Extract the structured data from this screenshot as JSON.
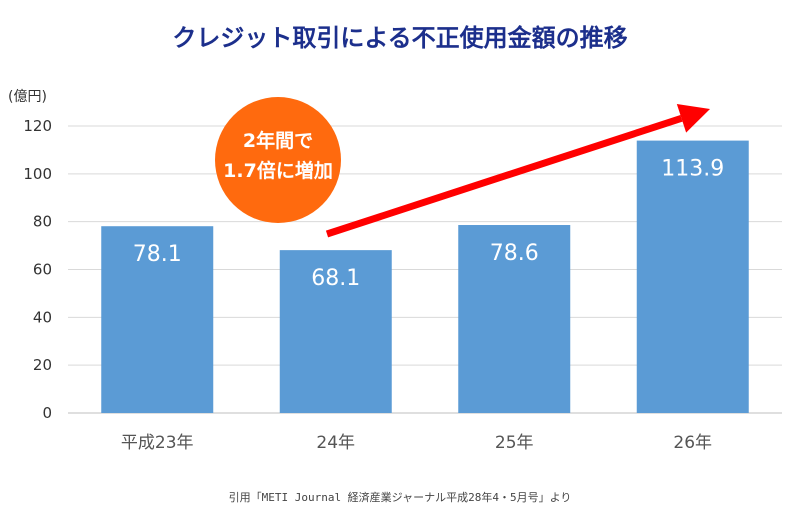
{
  "chart_data": {
    "type": "bar",
    "title": "クレジット取引による不正使用金額の推移",
    "ylabel": "(億円)",
    "xlabel": "",
    "categories": [
      "平成23年",
      "24年",
      "25年",
      "26年"
    ],
    "values": [
      78.1,
      68.1,
      78.6,
      113.9
    ],
    "value_labels": [
      "78.1",
      "68.1",
      "78.6",
      "113.9"
    ],
    "ylim": [
      0,
      120
    ],
    "yticks": [
      0,
      20,
      40,
      60,
      80,
      100,
      120
    ],
    "grid": true,
    "bar_color": "#5b9bd5",
    "annotation": {
      "lines": [
        "2年間で",
        "1.7倍に増加"
      ],
      "color": "#ff6a0e",
      "arrow_color": "#ff0000"
    }
  },
  "source": "引用「METI Journal 経済産業ジャーナル平成28年4・5月号」より"
}
